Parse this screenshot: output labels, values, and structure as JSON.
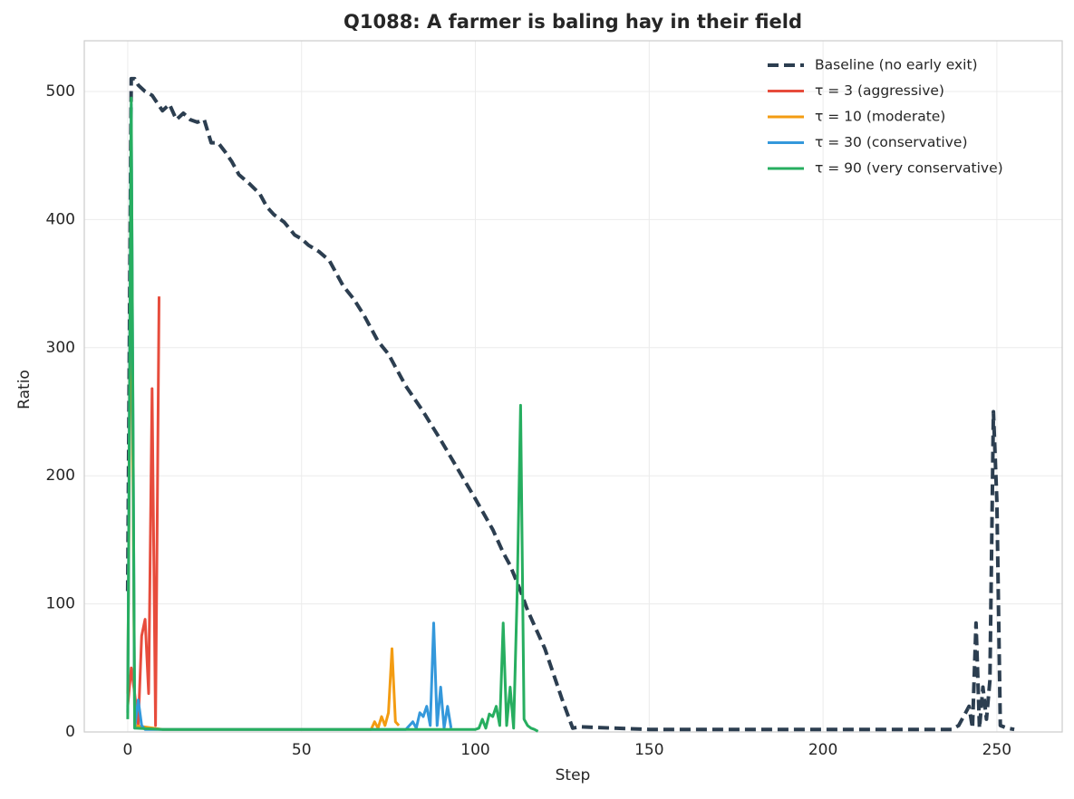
{
  "chart_data": {
    "type": "line",
    "title": "Q1088: A farmer is baling hay in their field",
    "x_label": "Step",
    "y_label": "Ratio",
    "xlim": [
      -12.5,
      268.8
    ],
    "ylim": [
      0,
      539.6
    ],
    "xticks": [
      0,
      50,
      100,
      150,
      200,
      250
    ],
    "yticks": [
      0,
      100,
      200,
      300,
      400,
      500
    ],
    "grid": true,
    "legend": "upper right",
    "series": [
      {
        "name": "Baseline (no early exit)",
        "color": "#2c3e50",
        "linestyle": "dashed",
        "x": [
          0,
          1,
          2,
          3,
          5,
          7,
          8,
          10,
          12,
          14,
          16,
          18,
          20,
          22,
          24,
          26,
          28,
          30,
          32,
          35,
          38,
          40,
          42,
          45,
          48,
          50,
          52,
          55,
          58,
          60,
          62,
          65,
          68,
          70,
          72,
          75,
          78,
          80,
          85,
          90,
          95,
          100,
          105,
          108,
          110,
          113,
          115,
          120,
          125,
          128,
          130,
          140,
          150,
          200,
          237,
          239,
          241,
          242,
          243,
          244,
          245,
          246,
          247,
          248,
          249,
          250,
          251,
          253,
          255
        ],
        "values": [
          110,
          510,
          510,
          505,
          500,
          497,
          493,
          485,
          490,
          478,
          483,
          478,
          476,
          478,
          460,
          460,
          453,
          445,
          435,
          428,
          420,
          410,
          404,
          398,
          388,
          385,
          380,
          375,
          368,
          358,
          348,
          338,
          325,
          315,
          305,
          295,
          280,
          270,
          250,
          228,
          205,
          182,
          158,
          140,
          130,
          110,
          95,
          65,
          25,
          3,
          4,
          3,
          2,
          2,
          2,
          5,
          15,
          20,
          3,
          85,
          3,
          35,
          10,
          40,
          250,
          180,
          5,
          3,
          2
        ]
      },
      {
        "name": "τ = 3 (aggressive)",
        "color": "#e74c3c",
        "linestyle": "solid",
        "x": [
          0,
          1,
          2,
          3,
          4,
          5,
          6,
          7,
          8,
          9
        ],
        "values": [
          20,
          50,
          30,
          5,
          75,
          88,
          30,
          268,
          5,
          340
        ]
      },
      {
        "name": "τ = 10 (moderate)",
        "color": "#f39c12",
        "linestyle": "solid",
        "x": [
          0,
          1,
          2,
          10,
          30,
          50,
          70,
          71,
          72,
          73,
          74,
          75,
          76,
          77,
          78
        ],
        "values": [
          30,
          400,
          5,
          2,
          2,
          2,
          2,
          8,
          3,
          12,
          5,
          15,
          65,
          8,
          5
        ]
      },
      {
        "name": "τ = 30 (conservative)",
        "color": "#3498db",
        "linestyle": "solid",
        "x": [
          0,
          1,
          2,
          3,
          4,
          5,
          40,
          80,
          82,
          83,
          84,
          85,
          86,
          87,
          88,
          89,
          90,
          91,
          92,
          93
        ],
        "values": [
          15,
          490,
          3,
          25,
          5,
          2,
          2,
          2,
          8,
          3,
          15,
          12,
          20,
          5,
          85,
          5,
          35,
          3,
          20,
          3
        ]
      },
      {
        "name": "τ = 90 (very conservative)",
        "color": "#27ae60",
        "linestyle": "solid",
        "x": [
          0,
          1,
          2,
          10,
          50,
          100,
          101,
          102,
          103,
          104,
          105,
          106,
          107,
          108,
          109,
          110,
          111,
          112,
          113,
          114,
          115,
          116,
          117,
          118
        ],
        "values": [
          10,
          495,
          3,
          2,
          2,
          2,
          3,
          10,
          3,
          14,
          12,
          20,
          5,
          85,
          5,
          35,
          3,
          108,
          255,
          10,
          5,
          3,
          2,
          0.5
        ]
      }
    ]
  }
}
